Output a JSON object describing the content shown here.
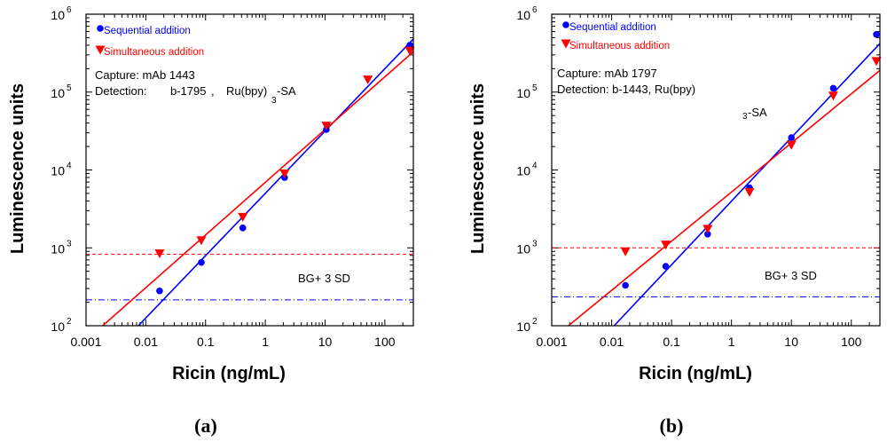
{
  "chart_data": [
    {
      "panel_label": "(a)",
      "type": "scatter",
      "xlabel": "Ricin (ng/mL)",
      "ylabel": "Luminescence units",
      "xscale": "log",
      "yscale": "log",
      "xlim": [
        0.001,
        300
      ],
      "ylim": [
        100,
        1000000
      ],
      "x_ticks": [
        "0.001",
        "0.01",
        "0.1",
        "1",
        "10",
        "100"
      ],
      "legend_position": "top-left",
      "annotations": {
        "capture": "Capture: mAb 1443",
        "detection_prefix": "Detection:",
        "detection_mid": "b-1795",
        "detection_sep": ",",
        "detection_reagent": "Ru(bpy)",
        "detection_sub": "3",
        "detection_suffix": "-SA",
        "bg_label": "BG+ 3 SD"
      },
      "series": [
        {
          "name": "Sequential addition",
          "color": "#0000ff",
          "marker": "circle",
          "x": [
            0.017,
            0.085,
            0.42,
            2.1,
            10.5,
            262
          ],
          "y": [
            280,
            650,
            1800,
            8000,
            33000,
            400000
          ],
          "fit_line": {
            "x": [
              0.0075,
              300
            ],
            "y": [
              100,
              480000
            ]
          },
          "threshold": {
            "y": 215,
            "style": "dash-dot"
          }
        },
        {
          "name": "Simultaneous addition",
          "color": "#ff0000",
          "marker": "triangle-down",
          "x": [
            0.017,
            0.085,
            0.42,
            2.1,
            10.5,
            52,
            262
          ],
          "y": [
            850,
            1250,
            2500,
            9000,
            37000,
            145000,
            340000
          ],
          "fit_line": {
            "x": [
              0.0019,
              300
            ],
            "y": [
              100,
              330000
            ]
          },
          "threshold": {
            "y": 830,
            "style": "dashed"
          }
        }
      ]
    },
    {
      "panel_label": "(b)",
      "type": "scatter",
      "xlabel": "Ricin (ng/mL)",
      "ylabel": "Luminescence units",
      "xscale": "log",
      "yscale": "log",
      "xlim": [
        0.001,
        300
      ],
      "ylim": [
        100,
        1000000
      ],
      "x_ticks": [
        "0.001",
        "0.01",
        "0.1",
        "1",
        "10",
        "100"
      ],
      "legend_position": "top-left",
      "annotations": {
        "capture": "Capture: mAb 1797",
        "detection_prefix": "Detection: b-1443, Ru(bpy)",
        "detection_sub": "3",
        "detection_suffix": "-SA",
        "bg_label": "BG+ 3 SD"
      },
      "series": [
        {
          "name": "Sequential addition",
          "color": "#0000ff",
          "marker": "circle",
          "x": [
            0.017,
            0.08,
            0.4,
            2.0,
            10,
            50,
            262
          ],
          "y": [
            330,
            580,
            1500,
            5900,
            26000,
            112000,
            550000
          ],
          "fit_line": {
            "x": [
              0.011,
              300
            ],
            "y": [
              100,
              420000
            ]
          },
          "threshold": {
            "y": 235,
            "style": "dash-dot"
          }
        },
        {
          "name": "Simultaneous addition",
          "color": "#ff0000",
          "marker": "triangle-down",
          "x": [
            0.017,
            0.08,
            0.4,
            2.0,
            10,
            50,
            262
          ],
          "y": [
            900,
            1100,
            1750,
            5200,
            21000,
            90000,
            250000
          ],
          "fit_line": {
            "x": [
              0.0019,
              300
            ],
            "y": [
              100,
              190000
            ]
          },
          "threshold": {
            "y": 1000,
            "style": "dashed"
          }
        }
      ]
    }
  ]
}
